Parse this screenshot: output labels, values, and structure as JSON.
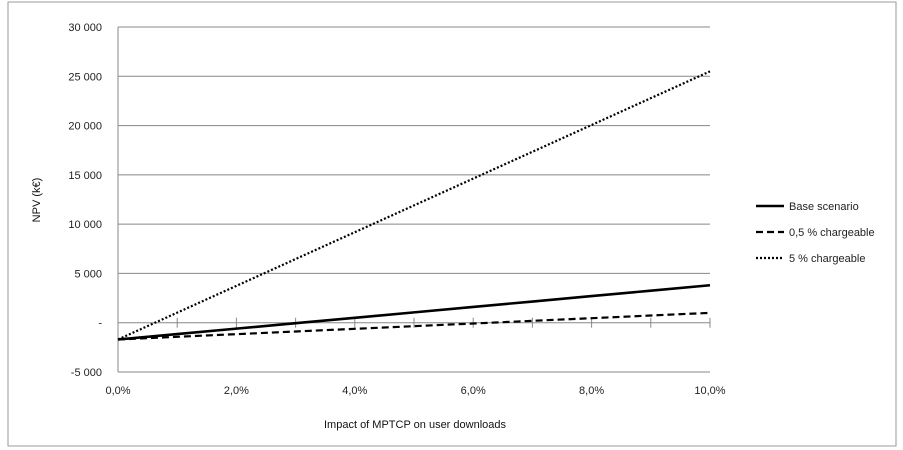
{
  "chart_data": {
    "type": "line",
    "title": "",
    "xlabel": "Impact of MPTCP on  user downloads",
    "ylabel": "NPV (k€)",
    "x": [
      0,
      1,
      2,
      3,
      4,
      5,
      6,
      7,
      8,
      9,
      10
    ],
    "x_tick_values": [
      0,
      2,
      4,
      6,
      8,
      10
    ],
    "x_tick_labels": [
      "0,0%",
      "2,0%",
      "4,0%",
      "6,0%",
      "8,0%",
      "10,0%"
    ],
    "xlim": [
      0,
      10
    ],
    "ylim": [
      -5000,
      30000
    ],
    "y_tick_values": [
      -5000,
      0,
      5000,
      10000,
      15000,
      20000,
      25000,
      30000
    ],
    "y_tick_labels": [
      "-5 000",
      "-",
      "5 000",
      "10 000",
      "15 000",
      "20 000",
      "25 000",
      "30 000"
    ],
    "grid": "horizontal",
    "legend_position": "right",
    "series": [
      {
        "name": "Base scenario",
        "style": "solid",
        "values": [
          -1700,
          -1150,
          -600,
          -50,
          500,
          1050,
          1600,
          2150,
          2700,
          3250,
          3800
        ]
      },
      {
        "name": "0,5 % chargeable",
        "style": "dashed",
        "values": [
          -1700,
          -1430,
          -1160,
          -890,
          -620,
          -350,
          -80,
          190,
          460,
          730,
          1000
        ]
      },
      {
        "name": "5 % chargeable",
        "style": "dotted",
        "values": [
          -1700,
          1020,
          3740,
          6460,
          9180,
          11900,
          14620,
          17340,
          20060,
          22780,
          25500
        ]
      }
    ],
    "colors": {
      "line": "#000000",
      "grid": "#888888",
      "border": "#9a9a9a"
    }
  }
}
